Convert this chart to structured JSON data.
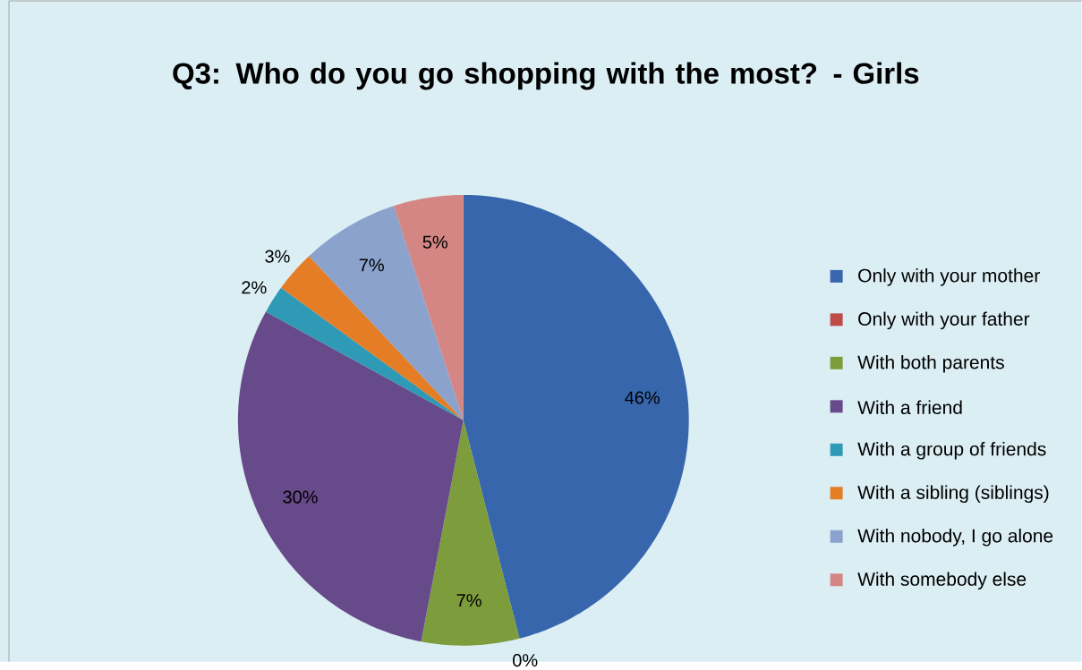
{
  "chart_data": {
    "type": "pie",
    "title": "Q3: Who do you go shopping with the most? - Girls",
    "categories": [
      "Only with your mother",
      "Only with your father",
      "With both parents",
      "With a friend",
      "With a group of friends",
      "With a sibling (siblings)",
      "With nobody, I go alone",
      "With somebody else"
    ],
    "values": [
      46,
      0,
      7,
      30,
      2,
      3,
      7,
      5
    ],
    "value_labels": [
      "46%",
      "0%",
      "7%",
      "30%",
      "2%",
      "3%",
      "7%",
      "5%"
    ],
    "colors": [
      "#3766ac",
      "#be4b48",
      "#7d9c3c",
      "#674a8a",
      "#2e9ab5",
      "#e47d25",
      "#8aa2cc",
      "#d48684"
    ],
    "legend": "right"
  }
}
